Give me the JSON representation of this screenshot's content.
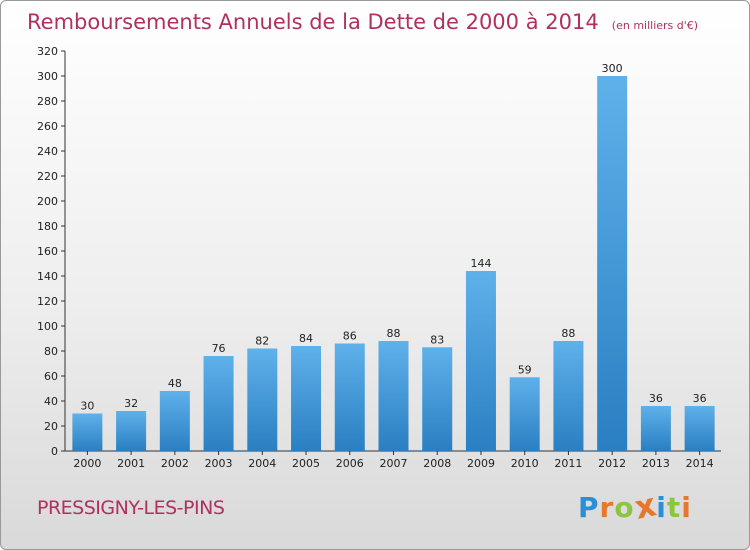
{
  "title": "Remboursements Annuels de la Dette de 2000 à 2014",
  "unit": "(en milliers d'€)",
  "commune": "PRESSIGNY-LES-PINS",
  "logo": {
    "letters": [
      "P",
      "r",
      "o",
      "x",
      "i",
      "t",
      "i"
    ],
    "colors": [
      "#2a8fd6",
      "#e8762c",
      "#8cc63f",
      "#e8762c",
      "#2a8fd6",
      "#8cc63f",
      "#e8762c"
    ]
  },
  "colors": {
    "bar_light": "#5fb1ea",
    "bar_dark": "#2a7fc2",
    "accent": "#b03060"
  },
  "chart_data": {
    "type": "bar",
    "categories": [
      "2000",
      "2001",
      "2002",
      "2003",
      "2004",
      "2005",
      "2006",
      "2007",
      "2008",
      "2009",
      "2010",
      "2011",
      "2012",
      "2013",
      "2014"
    ],
    "values": [
      30,
      32,
      48,
      76,
      82,
      84,
      86,
      88,
      83,
      144,
      59,
      88,
      300,
      36,
      36
    ],
    "ylim": [
      0,
      320
    ],
    "yticks": [
      0,
      20,
      40,
      60,
      80,
      100,
      120,
      140,
      160,
      180,
      200,
      220,
      240,
      260,
      280,
      300,
      320
    ],
    "grid": false,
    "data_labels": true
  }
}
